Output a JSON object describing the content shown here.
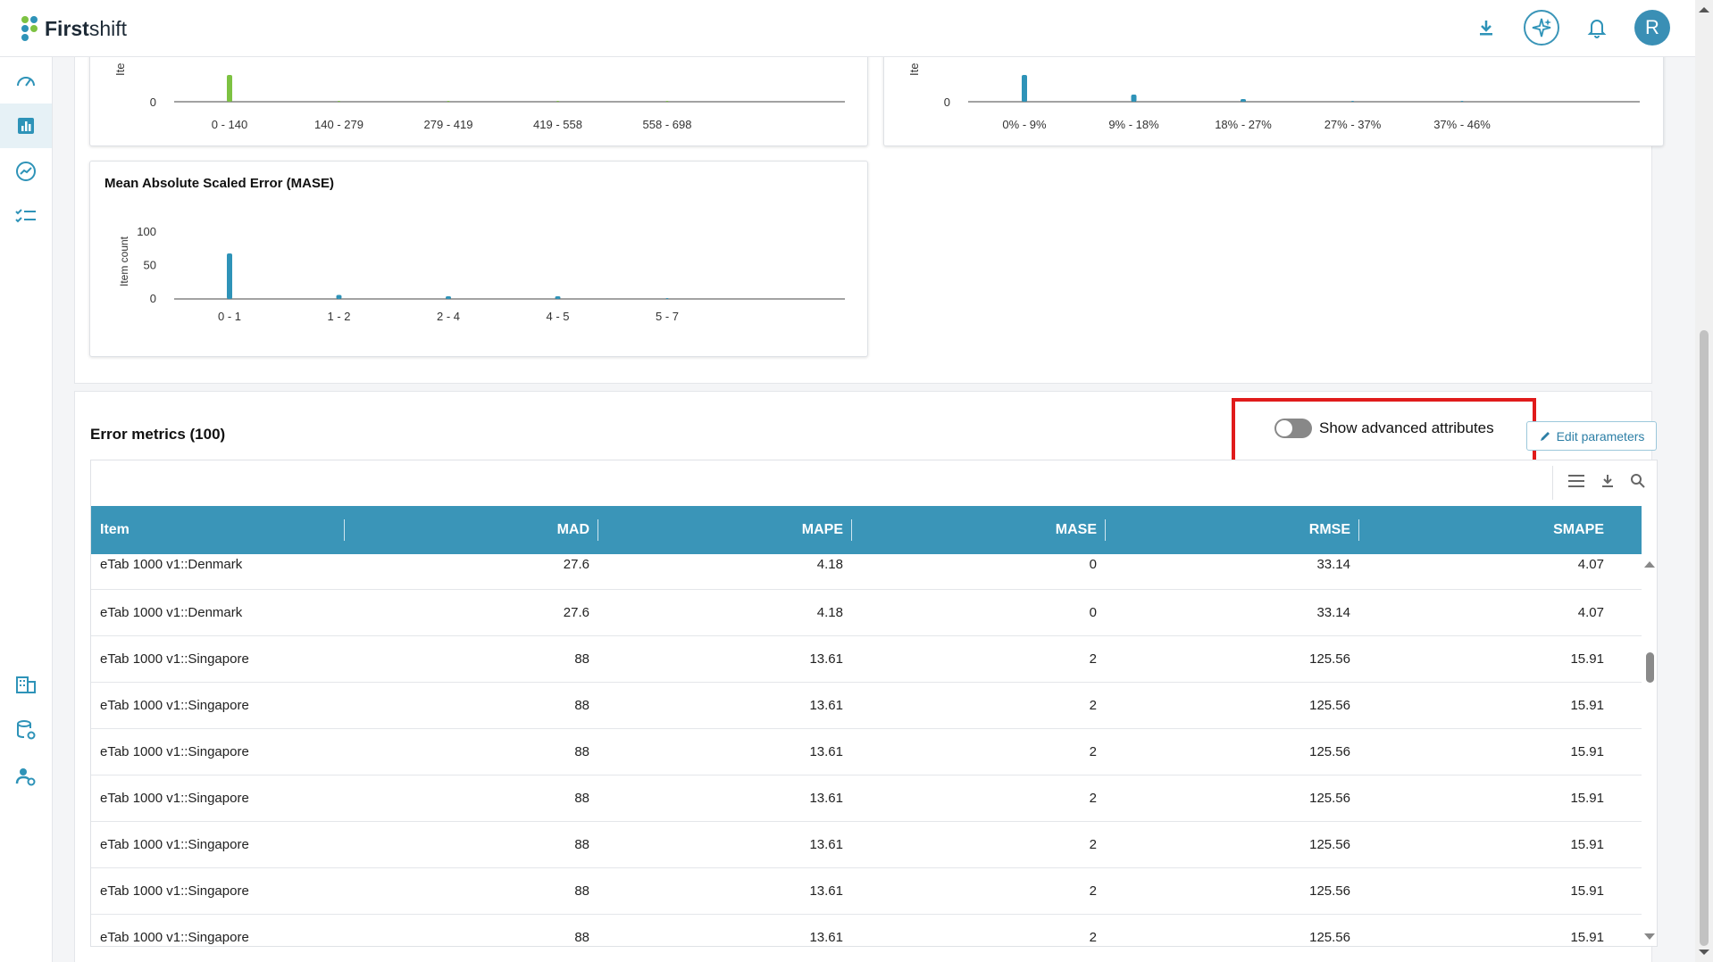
{
  "app": {
    "brand_bold": "First",
    "brand_light": "shift",
    "avatar_initial": "R",
    "accent": "#3a95b8",
    "highlight": "#e01b1b"
  },
  "topbar": {
    "icons": [
      "download-icon",
      "ai-sparkle-icon",
      "bell-icon"
    ]
  },
  "sidebar": {
    "items": [
      "dashboard-gauge-icon",
      "bar-chart-icon",
      "trend-chart-icon",
      "checklist-icon",
      "building-icon",
      "database-settings-icon",
      "user-settings-icon"
    ],
    "active": "bar-chart-icon"
  },
  "charts": {
    "chart1": {
      "ylabel": "Ite",
      "y0": "0"
    },
    "chart2": {
      "ylabel": "Ite",
      "y0": "0"
    },
    "mase": {
      "title": "Mean Absolute Scaled Error (MASE)",
      "ylabel": "Item count"
    }
  },
  "chart_data": [
    {
      "type": "bar",
      "title": "",
      "ylabel": "Ite",
      "categories": [
        "0 - 140",
        "140 - 279",
        "279 - 419",
        "419 - 558",
        "558 - 698"
      ],
      "values": [
        30,
        0,
        0,
        0,
        0
      ],
      "color": "#7dc242",
      "partially_visible": true
    },
    {
      "type": "bar",
      "title": "",
      "ylabel": "Ite",
      "categories": [
        "0% - 9%",
        "9% - 18%",
        "18% - 27%",
        "27% - 37%",
        "37% - 46%"
      ],
      "values": [
        30,
        8,
        1,
        0,
        0
      ],
      "color": "#2e93b8",
      "partially_visible": true
    },
    {
      "type": "bar",
      "title": "Mean Absolute Scaled Error (MASE)",
      "ylabel": "Item count",
      "categories": [
        "0 - 1",
        "1 - 2",
        "2 - 4",
        "4 - 5",
        "5 - 7"
      ],
      "values": [
        68,
        6,
        3,
        2,
        0
      ],
      "yticks": [
        "0",
        "50",
        "100"
      ],
      "ylim": [
        0,
        100
      ],
      "color": "#2e93b8"
    }
  ],
  "metrics": {
    "title": "Error metrics (100)",
    "toggle_label": "Show advanced attributes",
    "toggle_on": false,
    "edit_label": "Edit parameters",
    "tools": [
      "columns-icon",
      "download-icon",
      "search-icon"
    ],
    "columns": [
      "Item",
      "MAD",
      "MAPE",
      "MASE",
      "RMSE",
      "SMAPE"
    ],
    "rows": [
      [
        "eTab 1000 v1::Denmark",
        "27.6",
        "4.18",
        "0",
        "33.14",
        "4.07"
      ],
      [
        "eTab 1000 v1::Denmark",
        "27.6",
        "4.18",
        "0",
        "33.14",
        "4.07"
      ],
      [
        "eTab 1000 v1::Singapore",
        "88",
        "13.61",
        "2",
        "125.56",
        "15.91"
      ],
      [
        "eTab 1000 v1::Singapore",
        "88",
        "13.61",
        "2",
        "125.56",
        "15.91"
      ],
      [
        "eTab 1000 v1::Singapore",
        "88",
        "13.61",
        "2",
        "125.56",
        "15.91"
      ],
      [
        "eTab 1000 v1::Singapore",
        "88",
        "13.61",
        "2",
        "125.56",
        "15.91"
      ],
      [
        "eTab 1000 v1::Singapore",
        "88",
        "13.61",
        "2",
        "125.56",
        "15.91"
      ],
      [
        "eTab 1000 v1::Singapore",
        "88",
        "13.61",
        "2",
        "125.56",
        "15.91"
      ],
      [
        "eTab 1000 v1::Singapore",
        "88",
        "13.61",
        "2",
        "125.56",
        "15.91"
      ]
    ]
  }
}
